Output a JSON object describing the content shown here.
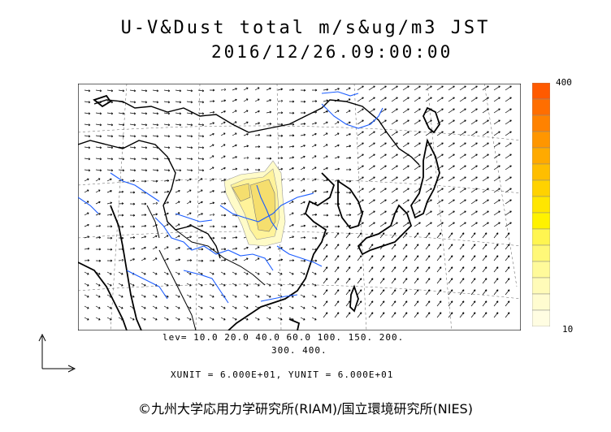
{
  "header": {
    "title_line1": "U-V&Dust total m/s&ug/m3 JST",
    "title_line2": "2016/12/26.09:00:00"
  },
  "contour_levels": {
    "line1": "lev= 10.0 20.0 40.0 60.0 100. 150. 200.",
    "line2": "300. 400."
  },
  "units": {
    "text": "XUNIT = 6.000E+01, YUNIT = 6.000E+01"
  },
  "colorbar": {
    "max_label": "400",
    "min_label": "10",
    "colors": [
      "#ff5a00",
      "#ff6e00",
      "#ff8200",
      "#ff9600",
      "#ffaa00",
      "#ffbe00",
      "#ffd200",
      "#ffe600",
      "#fff200",
      "#fff550",
      "#fff878",
      "#fffa9a",
      "#fffbb8",
      "#fffcd0",
      "#fffde2"
    ]
  },
  "credit": {
    "text": "©九州大学応用力学研究所(RIAM)/国立環境研究所(NIES)"
  },
  "map_colors": {
    "coast": "#000000",
    "river": "#1a5cff",
    "dust_light": "#fffbc8",
    "dust_mid": "#fff39a",
    "dust_dark": "#f5de6e"
  }
}
